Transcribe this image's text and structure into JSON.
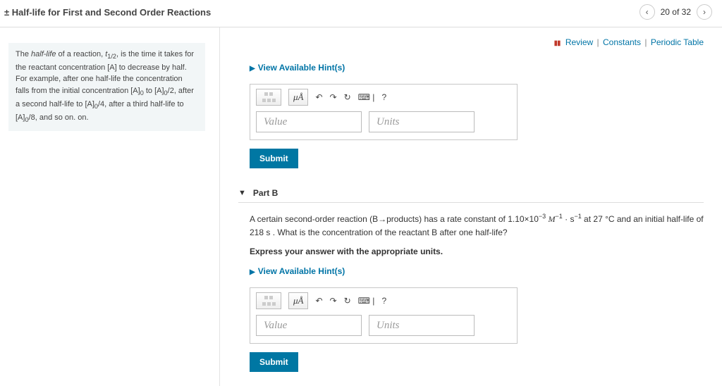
{
  "header": {
    "title": "± Half-life for First and Second Order Reactions",
    "pager_label": "20 of 32"
  },
  "review": {
    "link1": "Review",
    "link2": "Constants",
    "link3": "Periodic Table"
  },
  "sidebar": {
    "intro_html": "The <span class='it'>half-life</span> of a reaction, <span class='it'>t</span><sub>1/2</sub>, is the time it takes for the reactant concentration [A] to decrease by half. For example, after one half-life the concentration falls from the initial concentration [A]<sub>0</sub> to [A]<sub>0</sub>/2, after a second half-life to [A]<sub>0</sub>/4, after a third half-life to [A]<sub>0</sub>/8, and so on. on."
  },
  "answer": {
    "hints_label": "View Available Hint(s)",
    "value_ph": "Value",
    "units_ph": "Units",
    "tool_units": "μÅ",
    "tool_help": "?",
    "submit": "Submit"
  },
  "partB": {
    "label": "Part B",
    "question_html": "A certain second-order reaction (B→products) has a rate constant of 1.10×10<sup>−3</sup> <span class='mvar'><i>M</i></span><sup>−1</sup> · s<sup>−1</sup> at 27 °C and an initial half-life of 218 s . What is the concentration of the reactant B after one half-life?",
    "express": "Express your answer with the appropriate units."
  },
  "colors": {
    "link": "#0074a6",
    "submit_bg": "#0077a3",
    "sidebox_bg": "#f2f6f7"
  }
}
